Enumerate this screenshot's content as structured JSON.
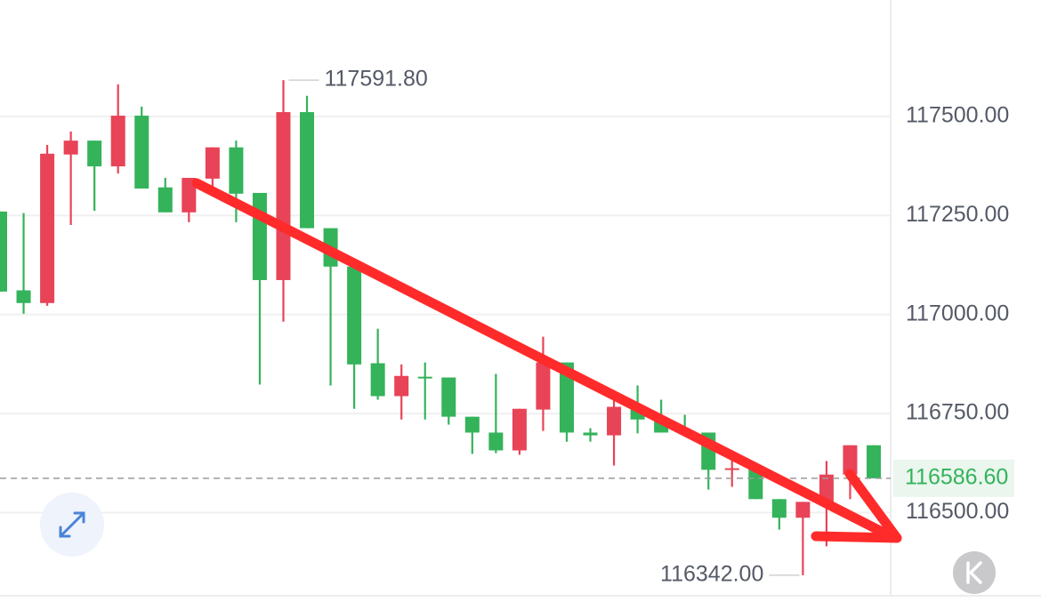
{
  "chart_data": {
    "type": "candlestick",
    "up_color": "#e84357",
    "down_color": "#34b35a",
    "open": [
      117260,
      117061,
      117029,
      117404,
      117439,
      117374,
      117502,
      117321,
      117258,
      117343,
      117422,
      117307,
      117087,
      117511,
      117218,
      117121,
      116877,
      116794,
      116843,
      116841,
      116742,
      116702,
      116657,
      116760,
      116879,
      116702,
      116695,
      116767,
      116735,
      116706,
      116702,
      116608,
      116612,
      116534,
      116487,
      116527,
      116596,
      116670
    ],
    "high": [
      117260,
      117256,
      117428,
      117462,
      117439,
      117581,
      117525,
      117345,
      117345,
      117422,
      117439,
      117307,
      117591.8,
      117552,
      117218,
      117121,
      116964,
      116874,
      116879,
      116841,
      116742,
      116850,
      116762,
      116944,
      116879,
      116713,
      116807,
      116821,
      116785,
      116747,
      116702,
      116655,
      116623,
      116534,
      116527,
      116630,
      116670,
      116670
    ],
    "low": [
      117058,
      117002,
      117022,
      117226,
      117262,
      117356,
      117318,
      117258,
      117233,
      117323,
      117233,
      116823,
      116982,
      117218,
      116821,
      116762,
      116785,
      116735,
      116735,
      116722,
      116648,
      116650,
      116646,
      116706,
      116679,
      116679,
      116619,
      116700,
      116702,
      116695,
      116558,
      116565,
      116534,
      116457,
      116342,
      116415,
      116534,
      116586.6
    ],
    "close": [
      117058,
      117029,
      117406,
      117439,
      117374,
      117502,
      117318,
      117258,
      117345,
      117422,
      117305,
      117087,
      117511,
      117218,
      117121,
      116874,
      116794,
      116845,
      116839,
      116742,
      116702,
      116657,
      116762,
      116879,
      116702,
      116695,
      116767,
      116735,
      116702,
      116702,
      116608,
      116612,
      116534,
      116487,
      116527,
      116596,
      116670,
      116586.6
    ],
    "ylim": [
      116290,
      117794
    ],
    "yticks": [
      {
        "value": 116500,
        "label": "116500.00"
      },
      {
        "value": 116750,
        "label": "116750.00"
      },
      {
        "value": 117000,
        "label": "117000.00"
      },
      {
        "value": 117250,
        "label": "117250.00"
      },
      {
        "value": 117500,
        "label": "117500.00"
      }
    ],
    "grid": true,
    "current_price": {
      "value": 116586.6,
      "label": "116586.60"
    },
    "annotations": [
      {
        "value": 117591.8,
        "label": "117591.80"
      },
      {
        "value": 116342,
        "label": "116342.00"
      }
    ]
  }
}
